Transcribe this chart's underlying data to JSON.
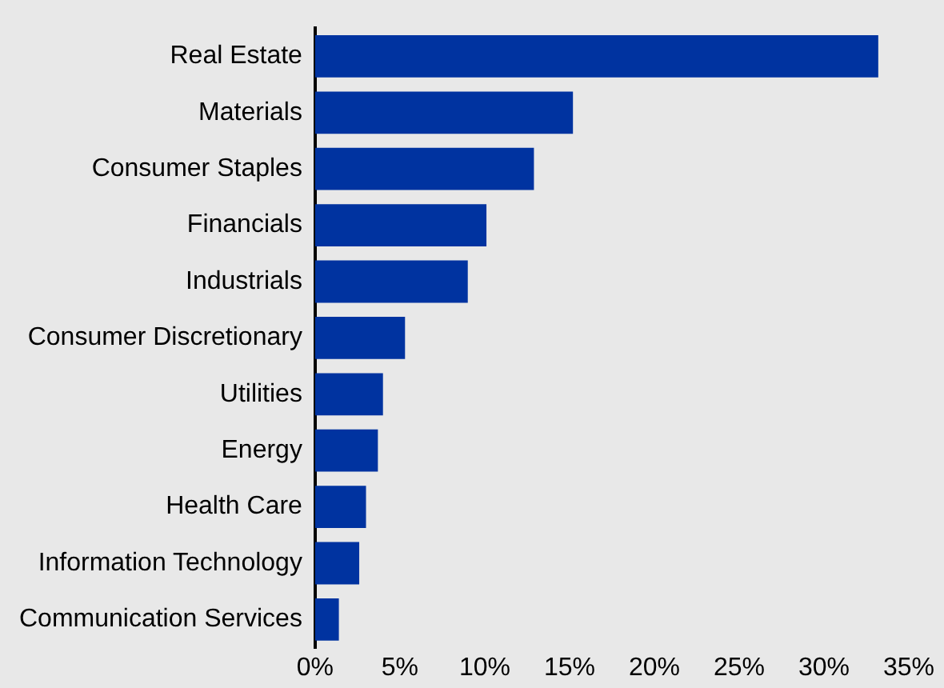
{
  "chart_data": {
    "type": "bar",
    "orientation": "horizontal",
    "categories": [
      "Real Estate",
      "Materials",
      "Consumer Staples",
      "Financials",
      "Industrials",
      "Consumer Discretionary",
      "Utilities",
      "Energy",
      "Health Care",
      "Information Technology",
      "Communication Services"
    ],
    "values": [
      33.2,
      15.2,
      12.9,
      10.1,
      9.0,
      5.3,
      4.0,
      3.7,
      3.0,
      2.6,
      1.4
    ],
    "color": "#0033a0",
    "xlim": [
      0,
      35
    ],
    "xticks": [
      {
        "value": 0,
        "label": "0%"
      },
      {
        "value": 5,
        "label": "5%"
      },
      {
        "value": 10,
        "label": "10%"
      },
      {
        "value": 15,
        "label": "15%"
      },
      {
        "value": 20,
        "label": "20%"
      },
      {
        "value": 25,
        "label": "25%"
      },
      {
        "value": 30,
        "label": "30%"
      },
      {
        "value": 35,
        "label": "35%"
      }
    ],
    "grid": false,
    "legend": false
  }
}
